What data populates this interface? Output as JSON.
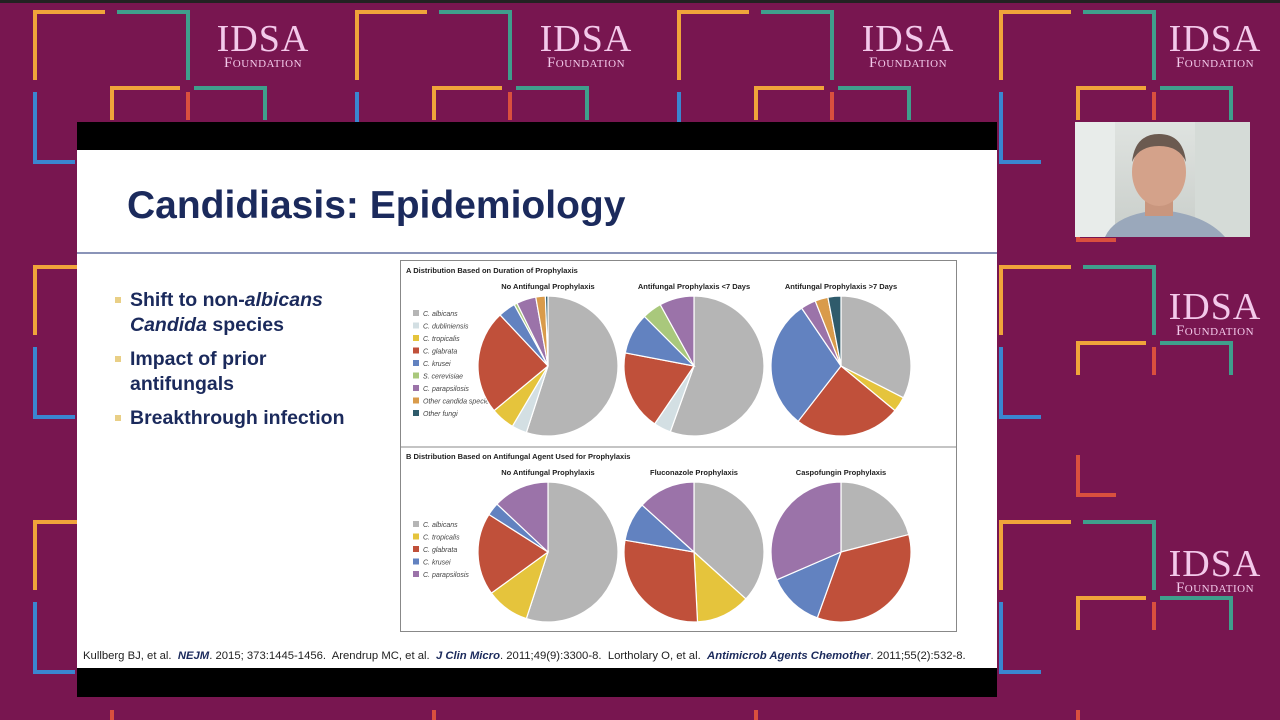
{
  "branding": {
    "logo_line1": "IDSA",
    "logo_line2": "Foundation"
  },
  "slide": {
    "title": "Candidiasis: Epidemiology",
    "bullets": [
      {
        "parts": [
          {
            "text": "Shift to non-",
            "italic": false
          },
          {
            "text": "albicans",
            "italic": true
          },
          {
            "text": " ",
            "italic": false
          },
          {
            "text": "Candida",
            "italic": true
          },
          {
            "text": " species",
            "italic": false
          }
        ]
      },
      {
        "parts": [
          {
            "text": "Impact of prior antifungals",
            "italic": false
          }
        ]
      },
      {
        "parts": [
          {
            "text": "Breakthrough infection",
            "italic": false
          }
        ]
      }
    ],
    "citation": {
      "c1_authors": "Kullberg BJ, et al.",
      "c1_journal": "NEJM",
      "c1_ref": ". 2015; 373:1445-1456.",
      "c2_authors": "Arendrup MC, et al.",
      "c2_journal": "J Clin Micro",
      "c2_ref": ". 2011;49(9):3300-8.",
      "c3_authors": "Lortholary O, et al.",
      "c3_journal": "Antimicrob Agents Chemother",
      "c3_ref": ". 2011;55(2):532-8."
    }
  },
  "colors": {
    "C. albicans": "#b5b5b5",
    "C. dubliniensis": "#d3dfe3",
    "C. tropicalis": "#e5c43c",
    "C. glabrata": "#c0503a",
    "C. krusei": "#6282c0",
    "S. cerevisiae": "#a9c87c",
    "C. parapsilosis": "#9b73a9",
    "Other candida species": "#d99b4b",
    "Other fungi": "#2f5b6b"
  },
  "chart_data": [
    {
      "type": "pie",
      "panel": "A",
      "title": "Distribution Based on Duration of Prophylaxis",
      "legend": [
        "C. albicans",
        "C. dubliniensis",
        "C. tropicalis",
        "C. glabrata",
        "C. krusei",
        "S. cerevisiae",
        "C. parapsilosis",
        "Other candida species",
        "Other fungi"
      ],
      "legend_position": "left",
      "pies": [
        {
          "title": "No Antifungal Prophylaxis",
          "values": [
            55,
            3.5,
            5.5,
            24,
            4,
            0.7,
            4.5,
            2.2,
            0.6
          ]
        },
        {
          "title": "Antifungal Prophylaxis <7 Days",
          "values": [
            55.5,
            4,
            0,
            18.5,
            9.5,
            4.5,
            8,
            0,
            0
          ]
        },
        {
          "title": "Antifungal Prophylaxis >7 Days",
          "values": [
            32.5,
            0,
            3.5,
            24.5,
            30,
            0,
            3.5,
            3,
            3
          ]
        }
      ]
    },
    {
      "type": "pie",
      "panel": "B",
      "title": "Distribution Based on Antifungal Agent Used for Prophylaxis",
      "legend": [
        "C. albicans",
        "C. tropicalis",
        "C. glabrata",
        "C. krusei",
        "C. parapsilosis"
      ],
      "legend_position": "left",
      "pies": [
        {
          "title": "No Antifungal Prophylaxis",
          "values": [
            55,
            10,
            19,
            3,
            13
          ]
        },
        {
          "title": "Fluconazole Prophylaxis",
          "values": [
            36.7,
            12.5,
            28.5,
            9,
            13.3
          ]
        },
        {
          "title": "Caspofungin Prophylaxis",
          "values": [
            21,
            0,
            34.5,
            13,
            31.5
          ]
        }
      ]
    }
  ]
}
